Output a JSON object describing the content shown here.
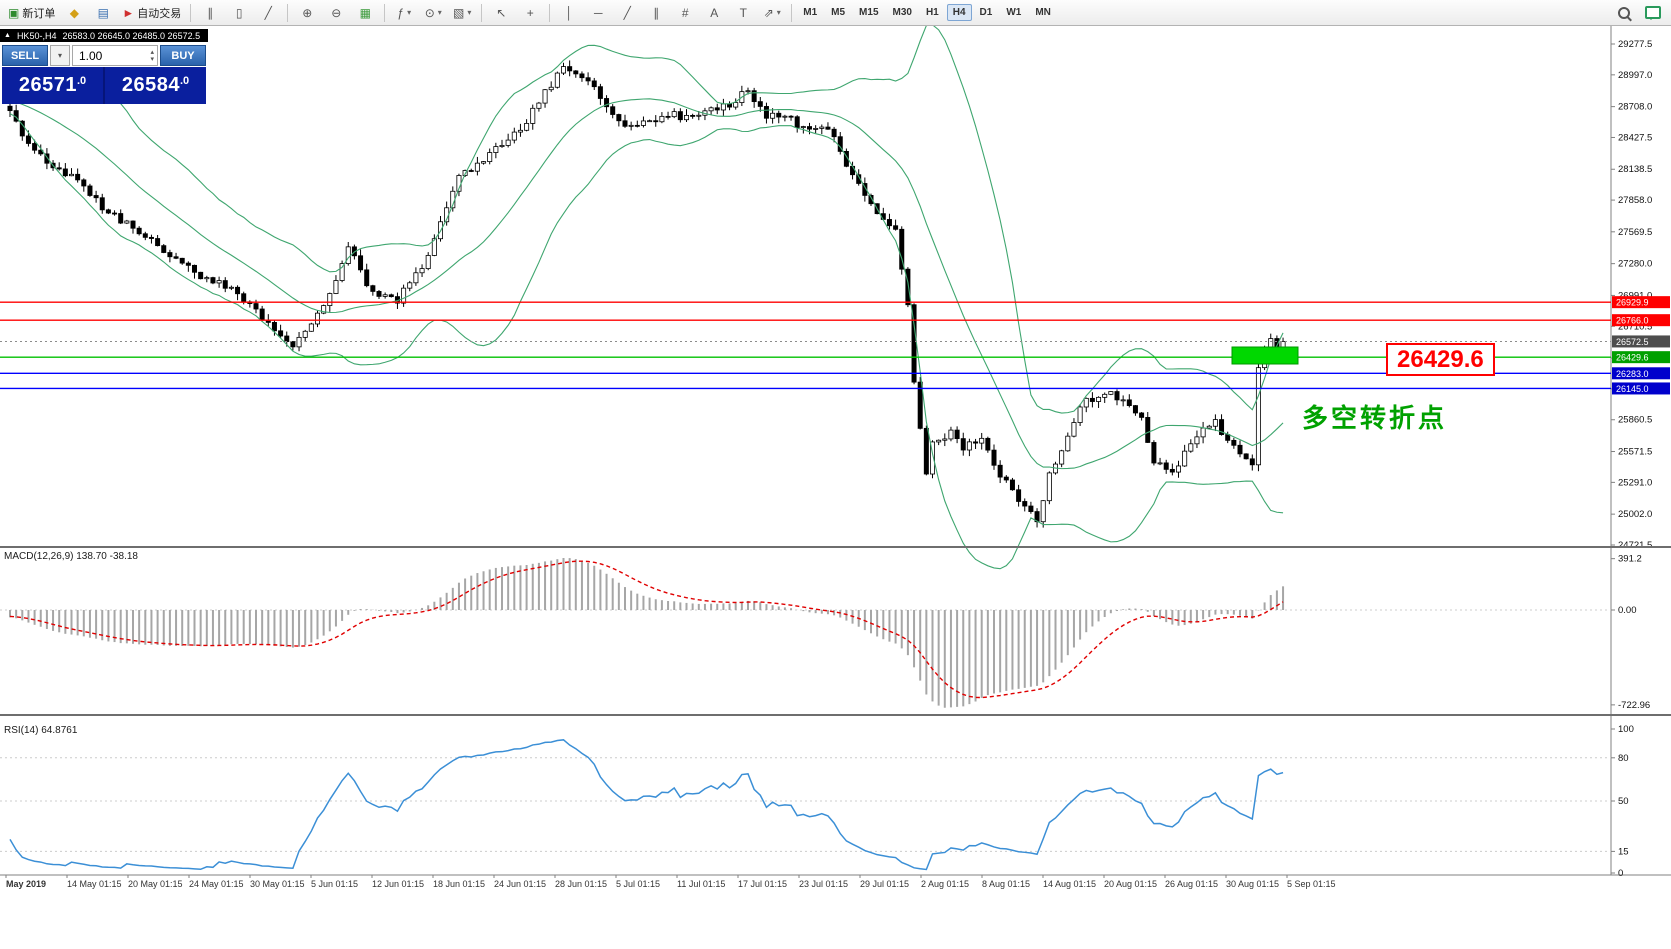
{
  "toolbar": {
    "new_order_label": "新订单",
    "autotrading_label": "自动交易",
    "timeframes": [
      "M1",
      "M5",
      "M15",
      "M30",
      "H1",
      "H4",
      "D1",
      "W1",
      "MN"
    ],
    "active_timeframe": "H4"
  },
  "icons": {
    "collapse": "▲",
    "new_order": "▣",
    "favorites": "◆",
    "market_watch": "▤",
    "autotrading": "►",
    "bars": "∥",
    "candles": "▯",
    "line_chart": "╱",
    "zoom_in": "⊕",
    "zoom_out": "⊖",
    "tile_windows": "▦",
    "indicators": "ƒ",
    "periods": "⊙",
    "templates": "▧",
    "cursor": "↖",
    "crosshair": "+",
    "vline": "│",
    "hline": "─",
    "trendline": "╱",
    "channel": "∥",
    "fibonacci": "#",
    "text": "A",
    "text_label": "T",
    "arrow_tool": "⇗",
    "dropdown": "▾",
    "spin_up": "▴",
    "spin_down": "▾"
  },
  "chart": {
    "title": "HK50-,H4",
    "ohlc": "26583.0 26645.0 26485.0 26572.5"
  },
  "oneclick": {
    "sell_label": "SELL",
    "buy_label": "BUY",
    "volume": "1.00",
    "sell_price_main": "26571",
    "sell_price_frac": ".0",
    "buy_price_main": "26584",
    "buy_price_frac": ".0"
  },
  "annotations": {
    "price_callout": "26429.6",
    "turning_point": "多空转折点",
    "highlight_color": "#00d800"
  },
  "hlines": [
    {
      "value": 26929.9,
      "label": "26929.9",
      "color": "#ff0000",
      "tag": "#ff0000",
      "dotted": false
    },
    {
      "value": 26766.0,
      "label": "26766.0",
      "color": "#ff0000",
      "tag": "#ff0000",
      "dotted": false
    },
    {
      "value": 26572.5,
      "label": "26572.5",
      "color": "#8c8c8c",
      "tag": "#4d4d4d",
      "dotted": true
    },
    {
      "value": 26429.6,
      "label": "26429.6",
      "color": "#00c000",
      "tag": "#00a000",
      "dotted": false
    },
    {
      "value": 26283.0,
      "label": "26283.0",
      "color": "#0000ff",
      "tag": "#0000cc",
      "dotted": false
    },
    {
      "value": 26145.0,
      "label": "26145.0",
      "color": "#0000ff",
      "tag": "#0000cc",
      "dotted": false
    }
  ],
  "price_axis": [
    "29277.5",
    "28997.0",
    "28708.0",
    "28427.5",
    "28138.5",
    "27858.0",
    "27569.5",
    "27280.0",
    "26991.0",
    "26710.5",
    "26421.5",
    "26141.0",
    "25860.5",
    "25571.5",
    "25291.0",
    "25002.0",
    "24721.5"
  ],
  "time_axis": [
    "May 2019",
    "14 May 01:15",
    "20 May 01:15",
    "24 May 01:15",
    "30 May 01:15",
    "5 Jun 01:15",
    "12 Jun 01:15",
    "18 Jun 01:15",
    "24 Jun 01:15",
    "28 Jun 01:15",
    "5 Jul 01:15",
    "11 Jul 01:15",
    "17 Jul 01:15",
    "23 Jul 01:15",
    "29 Jul 01:15",
    "2 Aug 01:15",
    "8 Aug 01:15",
    "14 Aug 01:15",
    "20 Aug 01:15",
    "26 Aug 01:15",
    "30 Aug 01:15",
    "5 Sep 01:15"
  ],
  "macd": {
    "label": "MACD(12,26,9) 138.70 -38.18",
    "params": "12,26,9",
    "values": [
      "138.70",
      "-38.18"
    ],
    "axis": [
      "391.2",
      "0.00",
      "-722.96"
    ]
  },
  "rsi": {
    "label": "RSI(14) 64.8761",
    "params": "14",
    "value": "64.8761",
    "axis": [
      "100",
      "80",
      "50",
      "15",
      "0"
    ],
    "levels": [
      80,
      50,
      15
    ]
  },
  "colors": {
    "bands": "#3fa66f",
    "hist": "#a6a6a6",
    "signal": "#e00000",
    "rsi_line": "#3b8fd6",
    "axis": "#808080",
    "grid_dash": "#cccccc",
    "candle_up": "#ffffff",
    "candle_down": "#000000",
    "candle_border": "#000000"
  },
  "chart_data": {
    "type": "candlestick",
    "symbol": "HK50-",
    "timeframe": "H4",
    "last_close": 26572.5,
    "candle_count": 208,
    "price_top": 29277.5,
    "price_bottom": 24721.5,
    "indicators": [
      "Bollinger Bands(20,2)",
      "MACD(12,26,9)",
      "RSI(14)"
    ],
    "anchors": [
      [
        0,
        28650
      ],
      [
        3,
        28350
      ],
      [
        7,
        28150
      ],
      [
        12,
        28000
      ],
      [
        15,
        27800
      ],
      [
        20,
        27600
      ],
      [
        24,
        27450
      ],
      [
        30,
        27200
      ],
      [
        36,
        27050
      ],
      [
        41,
        26800
      ],
      [
        46,
        26550
      ],
      [
        49,
        26700
      ],
      [
        53,
        27100
      ],
      [
        55,
        27450
      ],
      [
        59,
        27000
      ],
      [
        63,
        26950
      ],
      [
        67,
        27250
      ],
      [
        70,
        27650
      ],
      [
        73,
        28050
      ],
      [
        76,
        28200
      ],
      [
        80,
        28350
      ],
      [
        83,
        28500
      ],
      [
        87,
        28850
      ],
      [
        90,
        29050
      ],
      [
        94,
        28950
      ],
      [
        97,
        28700
      ],
      [
        100,
        28500
      ],
      [
        103,
        28550
      ],
      [
        107,
        28650
      ],
      [
        110,
        28600
      ],
      [
        113,
        28650
      ],
      [
        116,
        28700
      ],
      [
        120,
        28850
      ],
      [
        123,
        28600
      ],
      [
        126,
        28650
      ],
      [
        129,
        28500
      ],
      [
        132,
        28550
      ],
      [
        134,
        28400
      ],
      [
        137,
        28100
      ],
      [
        139,
        27900
      ],
      [
        141,
        27750
      ],
      [
        144,
        27600
      ],
      [
        146,
        26900
      ],
      [
        147,
        26200
      ],
      [
        149,
        25400
      ],
      [
        150,
        25650
      ],
      [
        153,
        25750
      ],
      [
        155,
        25600
      ],
      [
        158,
        25700
      ],
      [
        160,
        25450
      ],
      [
        163,
        25200
      ],
      [
        165,
        25050
      ],
      [
        167,
        24950
      ],
      [
        169,
        25350
      ],
      [
        172,
        25700
      ],
      [
        174,
        26000
      ],
      [
        176,
        26050
      ],
      [
        179,
        26100
      ],
      [
        181,
        26050
      ],
      [
        184,
        25900
      ],
      [
        186,
        25450
      ],
      [
        189,
        25400
      ],
      [
        191,
        25550
      ],
      [
        193,
        25700
      ],
      [
        196,
        25850
      ],
      [
        198,
        25650
      ],
      [
        201,
        25500
      ],
      [
        202,
        25480
      ],
      [
        203,
        26350
      ],
      [
        204,
        26500
      ],
      [
        205,
        26600
      ],
      [
        206,
        26540
      ],
      [
        207,
        26572.5
      ]
    ]
  }
}
